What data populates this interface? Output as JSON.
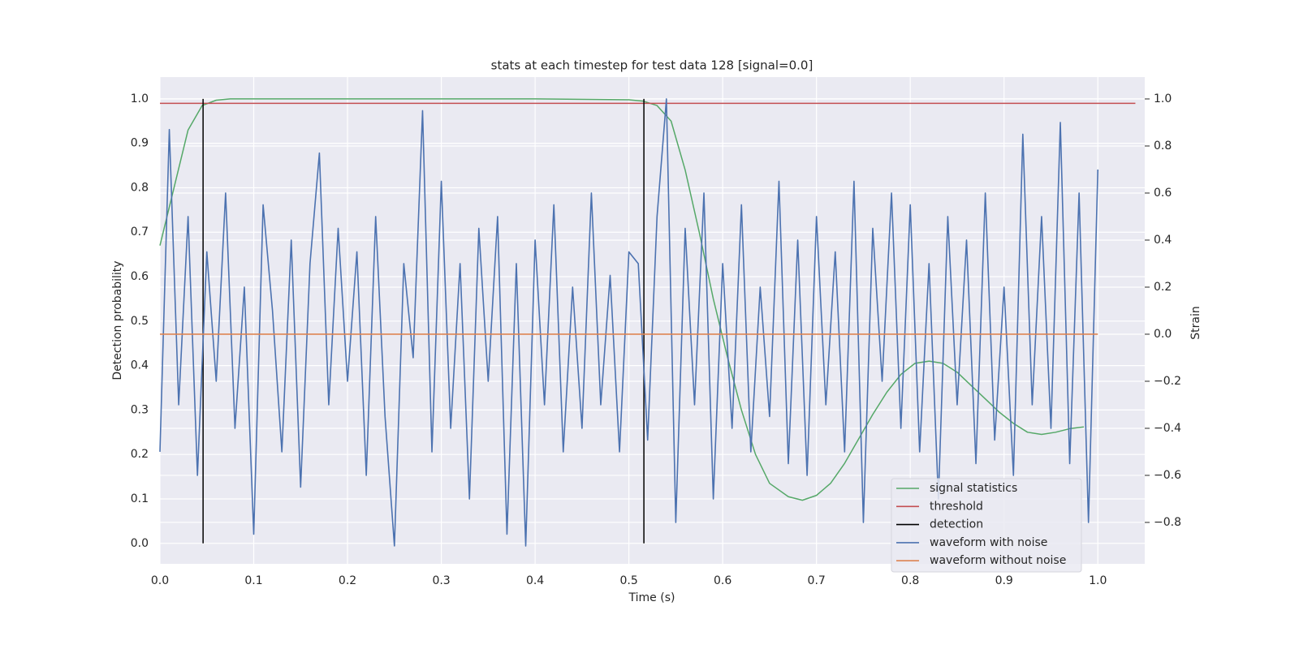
{
  "chart_data": {
    "type": "line",
    "title": "stats at each timestep for test data 128 [signal=0.0]",
    "x_label": "Time (s)",
    "y_label": "Detection probability",
    "y2_label": "Strain",
    "grid": true,
    "legend": "lower right",
    "xlim": [
      0,
      1.05
    ],
    "ylim": [
      -0.046,
      1.049
    ],
    "y2lim": [
      -0.976,
      1.093
    ],
    "xticks": [
      {
        "value": 0,
        "label": "0.0"
      },
      {
        "value": 0.1,
        "label": "0.1"
      },
      {
        "value": 0.2,
        "label": "0.2"
      },
      {
        "value": 0.3,
        "label": "0.3"
      },
      {
        "value": 0.4,
        "label": "0.4"
      },
      {
        "value": 0.5,
        "label": "0.5"
      },
      {
        "value": 0.6,
        "label": "0.6"
      },
      {
        "value": 0.7,
        "label": "0.7"
      },
      {
        "value": 0.8,
        "label": "0.8"
      },
      {
        "value": 0.9,
        "label": "0.9"
      },
      {
        "value": 1,
        "label": "1.0"
      }
    ],
    "yticks": [
      {
        "value": 0,
        "label": "0.0"
      },
      {
        "value": 0.1,
        "label": "0.1"
      },
      {
        "value": 0.2,
        "label": "0.2"
      },
      {
        "value": 0.3,
        "label": "0.3"
      },
      {
        "value": 0.4,
        "label": "0.4"
      },
      {
        "value": 0.5,
        "label": "0.5"
      },
      {
        "value": 0.6,
        "label": "0.6"
      },
      {
        "value": 0.7,
        "label": "0.7"
      },
      {
        "value": 0.8,
        "label": "0.8"
      },
      {
        "value": 0.9,
        "label": "0.9"
      },
      {
        "value": 1,
        "label": "1.0"
      }
    ],
    "y2ticks": [
      {
        "value": -0.8,
        "label": "−0.8"
      },
      {
        "value": -0.6,
        "label": "−0.6"
      },
      {
        "value": -0.4,
        "label": "−0.4"
      },
      {
        "value": -0.2,
        "label": "−0.2"
      },
      {
        "value": 0,
        "label": "0.0"
      },
      {
        "value": 0.2,
        "label": "0.2"
      },
      {
        "value": 0.4,
        "label": "0.4"
      },
      {
        "value": 0.6,
        "label": "0.6"
      },
      {
        "value": 0.8,
        "label": "0.8"
      },
      {
        "value": 1,
        "label": "1.0"
      }
    ],
    "series": [
      {
        "name": "signal statistics",
        "color": "#55a868",
        "x": [
          0,
          0.015,
          0.03,
          0.045,
          0.06,
          0.075,
          0.1,
          0.2,
          0.3,
          0.4,
          0.5,
          0.515,
          0.53,
          0.545,
          0.56,
          0.575,
          0.59,
          0.605,
          0.62,
          0.635,
          0.65,
          0.67,
          0.685,
          0.7,
          0.715,
          0.73,
          0.745,
          0.76,
          0.775,
          0.79,
          0.805,
          0.82,
          0.835,
          0.85,
          0.865,
          0.88,
          0.895,
          0.91,
          0.925,
          0.94,
          0.955,
          0.97,
          0.985
        ],
        "values": [
          0.67,
          0.8,
          0.93,
          0.985,
          0.997,
          1.0,
          1.0,
          1.0,
          1.0,
          1.0,
          0.998,
          0.995,
          0.985,
          0.95,
          0.84,
          0.7,
          0.55,
          0.42,
          0.3,
          0.2,
          0.135,
          0.105,
          0.097,
          0.108,
          0.135,
          0.18,
          0.235,
          0.29,
          0.34,
          0.38,
          0.405,
          0.41,
          0.405,
          0.385,
          0.355,
          0.325,
          0.295,
          0.27,
          0.25,
          0.245,
          0.25,
          0.258,
          0.262
        ]
      },
      {
        "name": "threshold",
        "color": "#c44e52",
        "x": [
          0,
          1.04
        ],
        "values": [
          0.99,
          0.99
        ]
      },
      {
        "name": "detection",
        "color": "#000000",
        "x": [
          0.046,
          0.046,
          null,
          0.516,
          0.516
        ],
        "values": [
          0,
          1,
          null,
          0,
          1
        ]
      },
      {
        "name": "waveform with noise",
        "color": "#4c72b0",
        "axis": "y2",
        "x": [
          0,
          0.01,
          0.02,
          0.03,
          0.04,
          0.05,
          0.06,
          0.07,
          0.08,
          0.09,
          0.1,
          0.11,
          0.12,
          0.13,
          0.14,
          0.15,
          0.16,
          0.17,
          0.18,
          0.19,
          0.2,
          0.21,
          0.22,
          0.23,
          0.24,
          0.25,
          0.26,
          0.27,
          0.28,
          0.29,
          0.3,
          0.31,
          0.32,
          0.33,
          0.34,
          0.35,
          0.36,
          0.37,
          0.38,
          0.39,
          0.4,
          0.41,
          0.42,
          0.43,
          0.44,
          0.45,
          0.46,
          0.47,
          0.48,
          0.49,
          0.5,
          0.51,
          0.52,
          0.53,
          0.54,
          0.55,
          0.56,
          0.57,
          0.58,
          0.59,
          0.6,
          0.61,
          0.62,
          0.63,
          0.64,
          0.65,
          0.66,
          0.67,
          0.68,
          0.69,
          0.7,
          0.71,
          0.72,
          0.73,
          0.74,
          0.75,
          0.76,
          0.77,
          0.78,
          0.79,
          0.8,
          0.81,
          0.82,
          0.83,
          0.84,
          0.85,
          0.86,
          0.87,
          0.88,
          0.89,
          0.9,
          0.91,
          0.92,
          0.93,
          0.94,
          0.95,
          0.96,
          0.97,
          0.98,
          0.99,
          1.0
        ],
        "values": [
          -0.5,
          0.87,
          -0.3,
          0.5,
          -0.6,
          0.35,
          -0.2,
          0.6,
          -0.4,
          0.2,
          -0.85,
          0.55,
          0.1,
          -0.5,
          0.4,
          -0.65,
          0.3,
          0.77,
          -0.3,
          0.45,
          -0.2,
          0.35,
          -0.6,
          0.5,
          -0.35,
          -0.9,
          0.3,
          -0.1,
          0.95,
          -0.5,
          0.65,
          -0.4,
          0.3,
          -0.7,
          0.45,
          -0.2,
          0.5,
          -0.85,
          0.3,
          -0.9,
          0.4,
          -0.3,
          0.55,
          -0.5,
          0.2,
          -0.4,
          0.6,
          -0.3,
          0.25,
          -0.5,
          0.35,
          0.3,
          -0.45,
          0.5,
          1.0,
          -0.8,
          0.45,
          -0.3,
          0.6,
          -0.7,
          0.3,
          -0.4,
          0.55,
          -0.5,
          0.2,
          -0.35,
          0.65,
          -0.55,
          0.4,
          -0.6,
          0.5,
          -0.3,
          0.35,
          -0.5,
          0.65,
          -0.8,
          0.45,
          -0.2,
          0.6,
          -0.4,
          0.55,
          -0.5,
          0.3,
          -0.7,
          0.5,
          -0.3,
          0.4,
          -0.55,
          0.6,
          -0.45,
          0.2,
          -0.6,
          0.85,
          -0.3,
          0.5,
          -0.4,
          0.9,
          -0.55,
          0.6,
          -0.8,
          0.7
        ]
      },
      {
        "name": "waveform without noise",
        "color": "#dd8452",
        "axis": "y2",
        "x": [
          0,
          1
        ],
        "values": [
          0,
          0
        ]
      }
    ]
  }
}
